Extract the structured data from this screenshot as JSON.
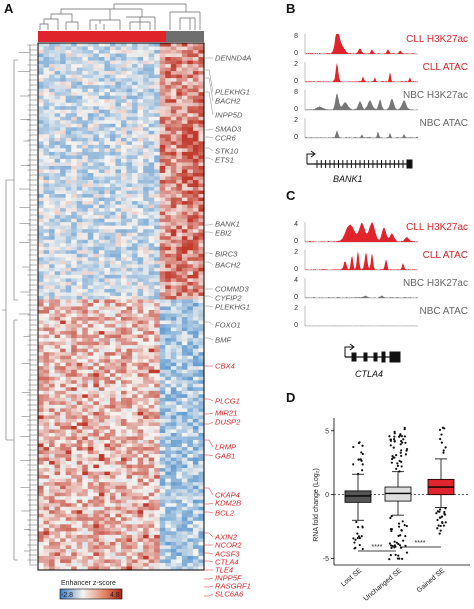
{
  "panels": {
    "A": "A",
    "B": "B",
    "C": "C",
    "D": "D"
  },
  "heatmap": {
    "genes_gray": [
      "DENND4A",
      "PLEKHG1",
      "BACH2",
      "INPP5D",
      "SMAD3",
      "CCR6",
      "STK10",
      "ETS1",
      "BANK1",
      "EBI2",
      "BIRC3",
      "BACH2",
      "COMMD3",
      "CYFIP2",
      "PLEKHG1",
      "FOXO1",
      "BMF"
    ],
    "genes_red": [
      "CBX4",
      "PLCG1",
      "MIR21",
      "DUSP2",
      "LRMP",
      "GAB1",
      "CKAP4",
      "KDM2B",
      "BCL2",
      "AXIN2",
      "NCOR2",
      "ACSF3",
      "CTLA4",
      "TLE4",
      "INPP5F",
      "RASGRF1",
      "SLC6A6"
    ],
    "legend_title": "Enhancer z-score",
    "legend_min": "-2.8",
    "legend_max": "4.8",
    "colors": {
      "low": "#5b9bd5",
      "mid": "#f7f4f0",
      "high": "#c0392b",
      "cll": "#e0242c",
      "nbc": "#6e6e6e"
    }
  },
  "panelB": {
    "gene": "BANK1",
    "tracks": [
      {
        "label": "CLL H3K27ac",
        "ymax": "8",
        "color": "#e0242c"
      },
      {
        "label": "CLL ATAC",
        "ymax": "2",
        "color": "#e0242c"
      },
      {
        "label": "NBC H3K27ac",
        "ymax": "8",
        "color": "#777777"
      },
      {
        "label": "NBC ATAC",
        "ymax": "2",
        "color": "#777777"
      }
    ]
  },
  "panelC": {
    "gene": "CTLA4",
    "tracks": [
      {
        "label": "CLL H3K27ac",
        "ymax": "4",
        "color": "#e0242c"
      },
      {
        "label": "CLL ATAC",
        "ymax": "2",
        "color": "#e0242c"
      },
      {
        "label": "NBC H3K27ac",
        "ymax": "4",
        "color": "#777777"
      },
      {
        "label": "NBC ATAC",
        "ymax": "2",
        "color": "#777777"
      }
    ]
  },
  "panelD": {
    "ylabel": "RNA fold change (Log₂)",
    "yticks": [
      "5",
      "0",
      "-5"
    ],
    "significance": [
      "****",
      "****"
    ],
    "chart_data": {
      "type": "box",
      "categories": [
        "Lost SE",
        "Unchanged SE",
        "Gained SE"
      ],
      "ylim": [
        -5.5,
        6
      ],
      "series": [
        {
          "name": "Lost SE",
          "median": -0.1,
          "q1": -0.6,
          "q3": 0.3,
          "whisker_low": -2.0,
          "whisker_high": 1.6,
          "color": "#555555"
        },
        {
          "name": "Unchanged SE",
          "median": 0.1,
          "q1": -0.5,
          "q3": 0.6,
          "whisker_low": -1.6,
          "whisker_high": 1.8,
          "color": "#dddddd"
        },
        {
          "name": "Gained SE",
          "median": 0.6,
          "q1": 0.0,
          "q3": 1.2,
          "whisker_low": -1.0,
          "whisker_high": 2.8,
          "color": "#e0242c"
        }
      ]
    }
  }
}
